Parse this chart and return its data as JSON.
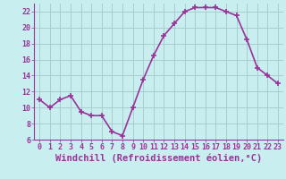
{
  "x": [
    0,
    1,
    2,
    3,
    4,
    5,
    6,
    7,
    8,
    9,
    10,
    11,
    12,
    13,
    14,
    15,
    16,
    17,
    18,
    19,
    20,
    21,
    22,
    23
  ],
  "y": [
    11,
    10,
    11,
    11.5,
    9.5,
    9,
    9,
    7,
    6.5,
    10,
    13.5,
    16.5,
    19,
    20.5,
    22,
    22.5,
    22.5,
    22.5,
    22,
    21.5,
    18.5,
    15,
    14,
    13
  ],
  "line_color": "#993399",
  "marker": "+",
  "marker_size": 5,
  "marker_lw": 1.2,
  "bg_color": "#c8eef0",
  "grid_color": "#aacccc",
  "xlabel": "Windchill (Refroidissement éolien,°C)",
  "ylim": [
    6,
    23
  ],
  "xlim": [
    -0.5,
    23.5
  ],
  "yticks": [
    6,
    8,
    10,
    12,
    14,
    16,
    18,
    20,
    22
  ],
  "xticks": [
    0,
    1,
    2,
    3,
    4,
    5,
    6,
    7,
    8,
    9,
    10,
    11,
    12,
    13,
    14,
    15,
    16,
    17,
    18,
    19,
    20,
    21,
    22,
    23
  ],
  "xlabel_fontsize": 7.5,
  "tick_fontsize": 6,
  "tick_color": "#993399",
  "axis_color": "#993399",
  "line_width": 1.2
}
